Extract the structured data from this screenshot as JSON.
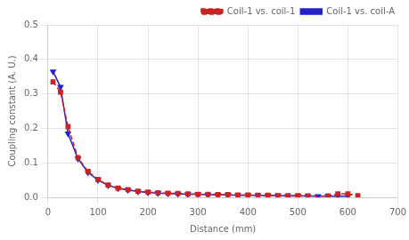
{
  "chart_data": {
    "type": "line",
    "xlabel": "Distance (mm)",
    "ylabel": "Coupling constant (A. U.)",
    "xlim": [
      0,
      700
    ],
    "ylim": [
      0,
      0.5
    ],
    "xticks": [
      0,
      100,
      200,
      300,
      400,
      500,
      600,
      700
    ],
    "yticks": [
      {
        "value": 0,
        "label": "0.0"
      },
      0.1,
      0.2,
      0.3,
      0.4,
      0.5
    ],
    "grid": true,
    "legend": "upper right",
    "series": [
      {
        "name": "Coil-1 vs. coil-1",
        "color": "#cc2222",
        "line_style": "dashed",
        "marker": "square",
        "x": [
          10,
          25,
          40,
          60,
          80,
          100,
          120,
          140,
          160,
          180,
          200,
          220,
          240,
          260,
          280,
          300,
          320,
          340,
          360,
          380,
          400,
          420,
          440,
          460,
          480,
          500,
          520,
          560,
          580,
          600,
          620
        ],
        "values": [
          0.335,
          0.305,
          0.205,
          0.115,
          0.075,
          0.052,
          0.036,
          0.027,
          0.022,
          0.018,
          0.015,
          0.013,
          0.012,
          0.011,
          0.01,
          0.009,
          0.009,
          0.008,
          0.008,
          0.007,
          0.007,
          0.006,
          0.006,
          0.005,
          0.005,
          0.005,
          0.004,
          0.004,
          0.01,
          0.01,
          0.005
        ]
      },
      {
        "name": "Coil-1 vs. coil-A",
        "color": "#2222cc",
        "line_style": "solid",
        "marker": "triangle_down",
        "x": [
          10,
          25,
          40,
          60,
          80,
          100,
          120,
          140,
          160,
          180,
          200,
          220,
          240,
          260,
          280,
          300,
          320,
          340,
          360,
          380,
          400,
          420,
          440,
          460,
          480,
          500,
          520,
          540,
          560,
          580,
          600
        ],
        "values": [
          0.365,
          0.32,
          0.185,
          0.112,
          0.072,
          0.05,
          0.035,
          0.026,
          0.021,
          0.017,
          0.014,
          0.012,
          0.011,
          0.01,
          0.009,
          0.009,
          0.008,
          0.007,
          0.007,
          0.006,
          0.006,
          0.006,
          0.005,
          0.005,
          0.004,
          0.004,
          0.004,
          0.003,
          0.003,
          0.003,
          0.003
        ]
      }
    ]
  }
}
